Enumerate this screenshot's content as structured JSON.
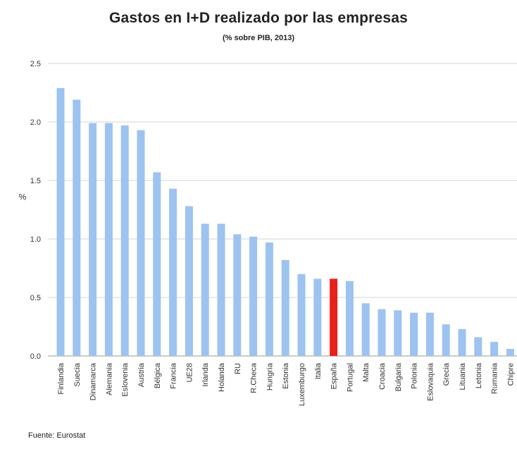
{
  "chart_data": {
    "type": "bar",
    "title": "Gastos en I+D realizado por las empresas",
    "subtitle": "(% sobre PIB, 2013)",
    "ylabel": "%",
    "xlabel": "",
    "ylim": [
      0,
      2.5
    ],
    "yticks": [
      "0.0",
      "0.5",
      "1.0",
      "1.5",
      "2.0",
      "2.5"
    ],
    "grid": true,
    "categories": [
      "Finlandia",
      "Suecia",
      "Dinamarca",
      "Alemania",
      "Eslovenia",
      "Austria",
      "Bélgica",
      "Francia",
      "UE28",
      "Irlanda",
      "Holanda",
      "RU",
      "R.Checa",
      "Hungría",
      "Estonia",
      "Luxemburgo",
      "Italia",
      "España",
      "Portugal",
      "Malta",
      "Croacia",
      "Bulgaria",
      "Polonia",
      "Eslovaquia",
      "Grecia",
      "Lituania",
      "Letonia",
      "Rumania",
      "Chipre"
    ],
    "values": [
      2.29,
      2.19,
      1.99,
      1.99,
      1.97,
      1.93,
      1.57,
      1.43,
      1.28,
      1.13,
      1.13,
      1.04,
      1.02,
      0.97,
      0.82,
      0.7,
      0.66,
      0.66,
      0.64,
      0.45,
      0.4,
      0.39,
      0.37,
      0.37,
      0.27,
      0.23,
      0.16,
      0.12,
      0.06
    ],
    "bar_color": "#9dc3f0",
    "highlight": {
      "category": "España",
      "color": "#e8211d"
    },
    "source": "Fuente: Eurostat"
  }
}
